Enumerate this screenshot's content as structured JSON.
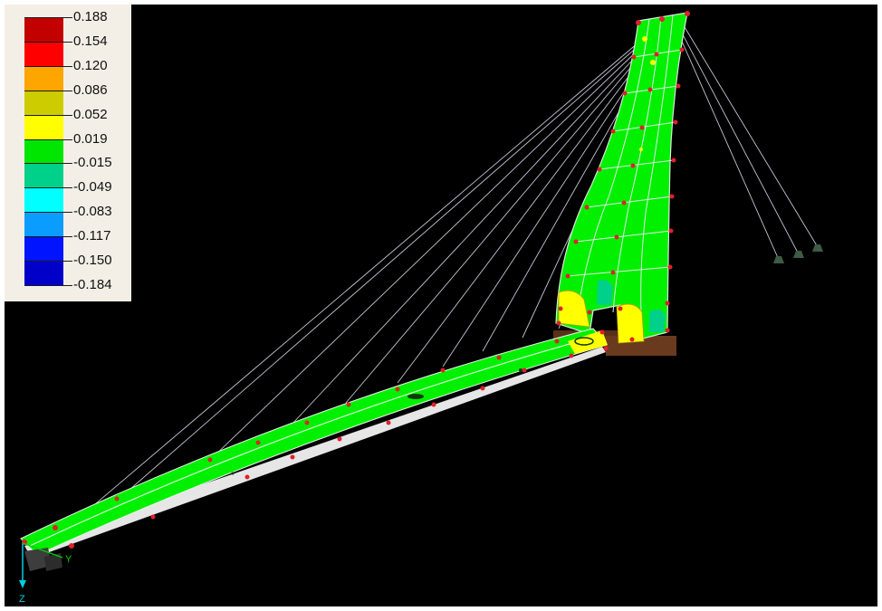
{
  "legend": {
    "values": [
      "0.188",
      "0.154",
      "0.120",
      "0.086",
      "0.052",
      "0.019",
      "-0.015",
      "-0.049",
      "-0.083",
      "-0.117",
      "-0.150",
      "-0.184"
    ],
    "colors": [
      "#c30000",
      "#ff0000",
      "#ffa500",
      "#cccc00",
      "#ffff00",
      "#00e600",
      "#00d18a",
      "#00ffff",
      "#0a9cff",
      "#0014ff",
      "#0000c8"
    ]
  },
  "axes": {
    "y_label": "Y",
    "z_label": "Z"
  },
  "scene_colors": {
    "contour_main": "#00f000",
    "node": "#e0202c",
    "cable": "#b8b8c8",
    "support": "#5a3018",
    "anchor": "#3f5a45"
  }
}
